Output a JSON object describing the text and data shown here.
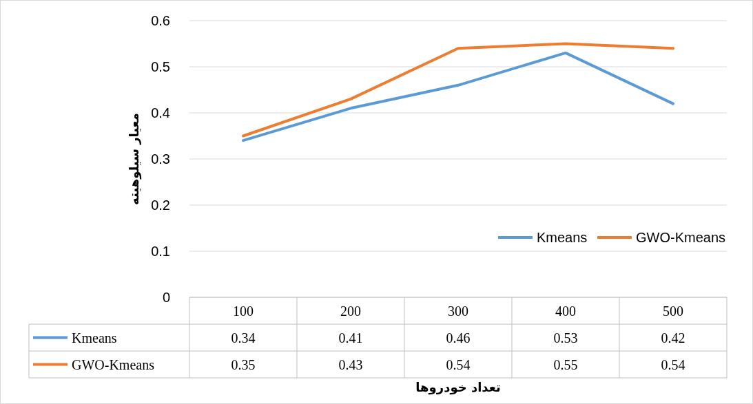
{
  "chart_data": {
    "type": "line",
    "xlabel": "تعداد خودروها",
    "ylabel": "معیار سیلوهیته",
    "categories": [
      "100",
      "200",
      "300",
      "400",
      "500"
    ],
    "series": [
      {
        "name": "Kmeans",
        "color": "#5b9bd5",
        "values": [
          0.34,
          0.41,
          0.46,
          0.53,
          0.42
        ]
      },
      {
        "name": "GWO-Kmeans",
        "color": "#ed7d31",
        "values": [
          0.35,
          0.43,
          0.54,
          0.55,
          0.54
        ]
      }
    ],
    "ylim": [
      0,
      0.6
    ],
    "yticks": [
      0,
      0.1,
      0.2,
      0.3,
      0.4,
      0.5,
      0.6
    ],
    "grid": "y",
    "legend": "bottom right",
    "data_labels": true,
    "line_style": "solid",
    "marker": "none"
  }
}
